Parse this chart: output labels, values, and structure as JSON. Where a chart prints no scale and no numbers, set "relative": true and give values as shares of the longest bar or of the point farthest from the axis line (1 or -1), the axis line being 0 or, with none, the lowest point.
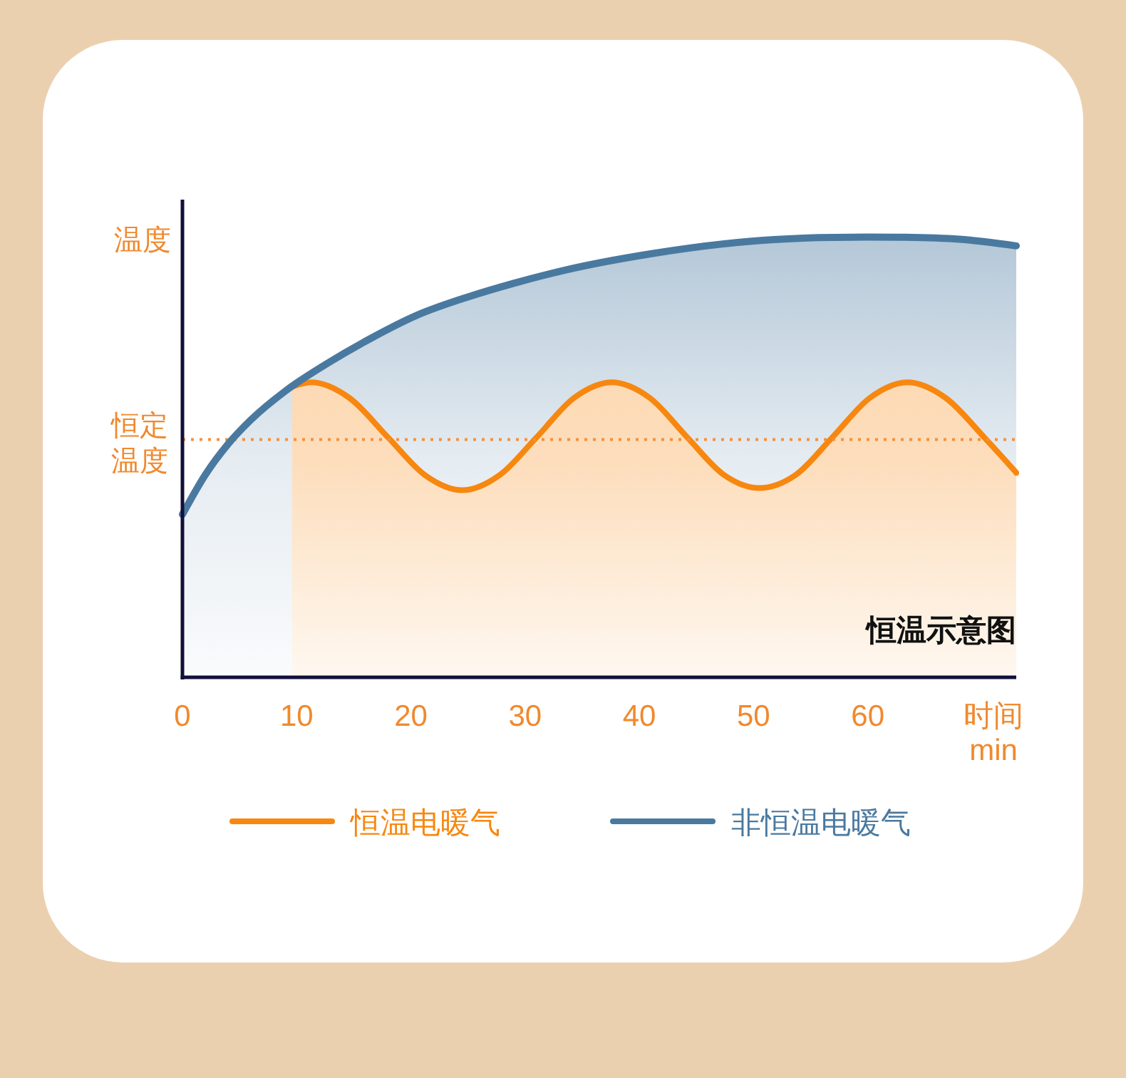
{
  "chart_data": {
    "type": "area",
    "title": "恒温示意图",
    "xlabel": "时间\nmin",
    "ylabel": "温度",
    "relative": true,
    "xlim": [
      0,
      73
    ],
    "xticks": [
      0,
      10,
      20,
      30,
      40,
      50,
      60
    ],
    "legend": "bottom",
    "line_style": "solid",
    "ref_lines": [
      {
        "axis": "y",
        "value": 0.54,
        "label": "恒定温度",
        "color": "#f5913a",
        "line_style": "dotted"
      }
    ],
    "series": [
      {
        "name": "恒温电暖气",
        "color": "#f7870f",
        "x": [
          9.6,
          11.3,
          14.6,
          18,
          21.2,
          24.5,
          27.8,
          31,
          34.3,
          37.6,
          40.9,
          44.2,
          47.4,
          50.5,
          53.7,
          56.9,
          60.2,
          63.5,
          66.8,
          70.2,
          73
        ],
        "values": [
          0.66,
          0.67,
          0.635,
          0.545,
          0.46,
          0.425,
          0.46,
          0.545,
          0.635,
          0.67,
          0.635,
          0.545,
          0.46,
          0.43,
          0.46,
          0.545,
          0.635,
          0.67,
          0.635,
          0.545,
          0.465
        ]
      },
      {
        "name": "非恒温电暖气",
        "color": "#4a79a0",
        "x": [
          0,
          2,
          4,
          6,
          9,
          12.5,
          16.5,
          20.5,
          25,
          29,
          33.5,
          41,
          49.5,
          60,
          68,
          73
        ],
        "values": [
          0.37,
          0.46,
          0.53,
          0.585,
          0.65,
          0.71,
          0.77,
          0.822,
          0.864,
          0.895,
          0.925,
          0.962,
          0.99,
          1.0,
          0.995,
          0.98
        ]
      }
    ]
  }
}
